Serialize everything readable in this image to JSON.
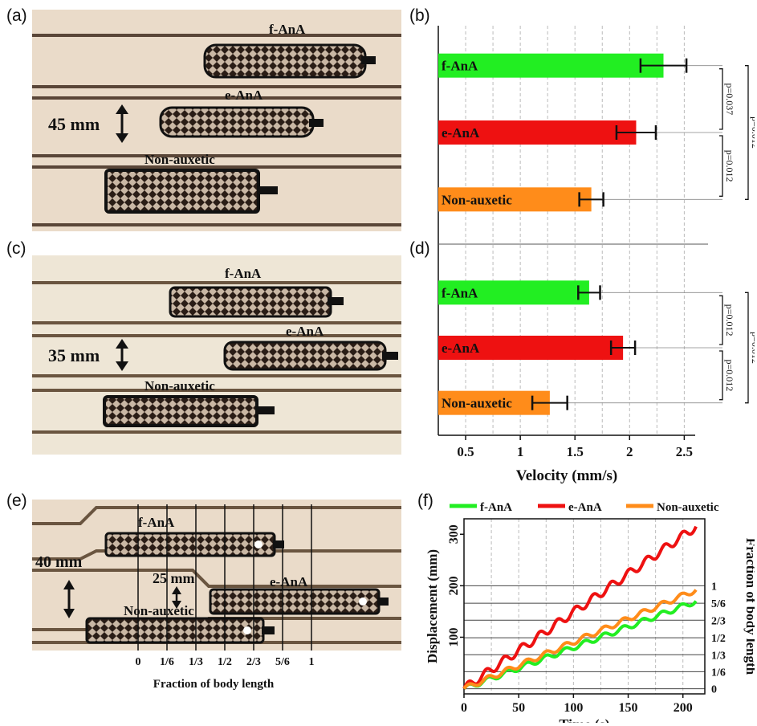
{
  "panels": {
    "a": {
      "label": "(a)",
      "scale_label": "45 mm",
      "robots": [
        "f-AnA",
        "e-AnA",
        "Non-auxetic"
      ]
    },
    "b": {
      "label": "(b)"
    },
    "c": {
      "label": "(c)",
      "scale_label": "35 mm",
      "robots": [
        "f-AnA",
        "e-AnA",
        "Non-auxetic"
      ]
    },
    "d": {
      "label": "(d)"
    },
    "e": {
      "label": "(e)",
      "scale_label_1": "40 mm",
      "scale_label_2": "25 mm",
      "robots": [
        "f-AnA",
        "e-AnA",
        "Non-auxetic"
      ],
      "fraction_ticks": [
        "0",
        "1/6",
        "1/3",
        "1/2",
        "2/3",
        "5/6",
        "1"
      ],
      "xlabel": "Fraction of body length"
    },
    "f": {
      "label": "(f)"
    }
  },
  "colors": {
    "f-AnA": "#22ee22",
    "e-AnA": "#ee1111",
    "Non-auxetic": "#ff8c1a"
  },
  "chart_data": [
    {
      "id": "b",
      "type": "bar",
      "orientation": "horizontal",
      "categories": [
        "f-AnA",
        "e-AnA",
        "Non-auxetic"
      ],
      "values": [
        2.31,
        2.06,
        1.65
      ],
      "errors": [
        0.21,
        0.18,
        0.11
      ],
      "xlim": [
        0.25,
        2.6
      ],
      "grid": true,
      "significance": [
        {
          "pair": [
            "f-AnA",
            "e-AnA"
          ],
          "label": "p=0.037"
        },
        {
          "pair": [
            "e-AnA",
            "Non-auxetic"
          ],
          "label": "p=0.012"
        },
        {
          "pair": [
            "f-AnA",
            "Non-auxetic"
          ],
          "label": "p=0.012"
        }
      ]
    },
    {
      "id": "d",
      "type": "bar",
      "orientation": "horizontal",
      "categories": [
        "f-AnA",
        "e-AnA",
        "Non-auxetic"
      ],
      "values": [
        1.63,
        1.94,
        1.27
      ],
      "errors": [
        0.1,
        0.11,
        0.16
      ],
      "xlim": [
        0.25,
        2.6
      ],
      "grid": true,
      "xticks": [
        "0.5",
        "1",
        "1.5",
        "2",
        "2.5"
      ],
      "xlabel": "Velocity (mm/s)",
      "significance": [
        {
          "pair": [
            "f-AnA",
            "e-AnA"
          ],
          "label": "p=0.012"
        },
        {
          "pair": [
            "e-AnA",
            "Non-auxetic"
          ],
          "label": "p=0.012"
        },
        {
          "pair": [
            "f-AnA",
            "Non-auxetic"
          ],
          "label": "p=0.012"
        }
      ]
    },
    {
      "id": "f",
      "type": "line",
      "xlabel": "Time (s)",
      "ylabel": "Displacement (mm)",
      "y2label": "Fraction of body length",
      "xlim": [
        0,
        220
      ],
      "ylim": [
        -10,
        330
      ],
      "xticks": [
        "0",
        "50",
        "100",
        "150",
        "200"
      ],
      "yticks": [
        "100",
        "200",
        "300"
      ],
      "y2ticks": [
        "0",
        "1/6",
        "1/3",
        "1/2",
        "2/3",
        "5/6",
        "1"
      ],
      "y2tick_values": [
        0,
        33,
        66,
        99,
        133,
        166,
        200
      ],
      "legend": "top",
      "series": [
        {
          "name": "f-AnA",
          "final": 170,
          "stalls": 12,
          "amp": 5
        },
        {
          "name": "e-AnA",
          "final": 315,
          "stalls": 13,
          "amp": 8
        },
        {
          "name": "Non-auxetic",
          "final": 192,
          "stalls": 12,
          "amp": 5
        }
      ]
    }
  ]
}
